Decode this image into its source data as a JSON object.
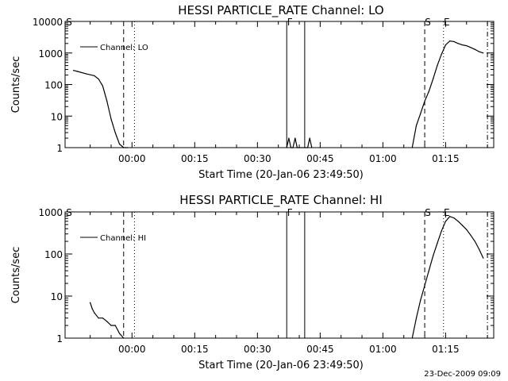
{
  "chart_data": [
    {
      "type": "line",
      "title": "HESSI PARTICLE_RATE Channel: LO",
      "xlabel": "Start Time (20-Jan-06 23:49:50)",
      "ylabel": "Counts/sec",
      "y_scale": "log",
      "ylim": [
        1,
        10000
      ],
      "y_ticks": [
        "1",
        "10",
        "100",
        "1000",
        "10000"
      ],
      "x_ticks": [
        "00:00",
        "00:15",
        "00:30",
        "00:45",
        "01:00",
        "01:15"
      ],
      "legend": {
        "placement": "top-left",
        "entries": [
          "Channel: LO"
        ]
      },
      "markers": [
        "S",
        "F",
        "S",
        "E"
      ],
      "series": [
        {
          "x": [
            "-00:14",
            "-00:13",
            "-00:11",
            "-00:09",
            "-00:08",
            "-00:07",
            "-00:06",
            "-00:05",
            "-00:04",
            "-00:03",
            "-00:02",
            "-00:01",
            "00:37",
            "00:37.5",
            "00:38",
            "00:38.5",
            "00:39",
            "00:39.5",
            "00:40",
            "00:42",
            "00:42.5",
            "00:43",
            "01:07",
            "01:08",
            "01:09",
            "01:10",
            "01:11",
            "01:12",
            "01:13",
            "01:14",
            "01:15",
            "01:16",
            "01:17",
            "01:18",
            "01:19",
            "01:20",
            "01:21",
            "01:22",
            "01:23",
            "01:24"
          ],
          "y": [
            280,
            260,
            220,
            190,
            150,
            90,
            30,
            8,
            3,
            1.3,
            1,
            1,
            1,
            2,
            1,
            1,
            2,
            1,
            1,
            1,
            2,
            1,
            1,
            5,
            12,
            30,
            60,
            150,
            400,
            900,
            1800,
            2400,
            2300,
            2000,
            1800,
            1700,
            1500,
            1300,
            1100,
            1000
          ]
        }
      ]
    },
    {
      "type": "line",
      "title": "HESSI PARTICLE_RATE Channel: HI",
      "xlabel": "Start Time (20-Jan-06 23:49:50)",
      "ylabel": "Counts/sec",
      "y_scale": "log",
      "ylim": [
        1,
        1000
      ],
      "y_ticks": [
        "1",
        "10",
        "100",
        "1000"
      ],
      "x_ticks": [
        "00:00",
        "00:15",
        "00:30",
        "00:45",
        "01:00",
        "01:15"
      ],
      "legend": {
        "placement": "top-left",
        "entries": [
          "Channel: HI"
        ]
      },
      "markers": [
        "S",
        "F",
        "S",
        "E"
      ],
      "series": [
        {
          "x": [
            "-00:10",
            "-00:09.5",
            "-00:09",
            "-00:08",
            "-00:07",
            "-00:06",
            "-00:05",
            "-00:04",
            "-00:03",
            "-00:02",
            "01:07",
            "01:08",
            "01:09",
            "01:10",
            "01:11",
            "01:12",
            "01:13",
            "01:14",
            "01:15",
            "01:16",
            "01:17",
            "01:18",
            "01:19",
            "01:20",
            "01:21",
            "01:22",
            "01:23",
            "01:24"
          ],
          "y": [
            7,
            5,
            4,
            3,
            3,
            2.5,
            2,
            2,
            1.3,
            1,
            1,
            3,
            8,
            18,
            40,
            90,
            180,
            350,
            600,
            780,
            720,
            600,
            480,
            380,
            280,
            200,
            130,
            80
          ]
        }
      ]
    }
  ],
  "footer": {
    "date": "23-Dec-2009 09:09"
  }
}
